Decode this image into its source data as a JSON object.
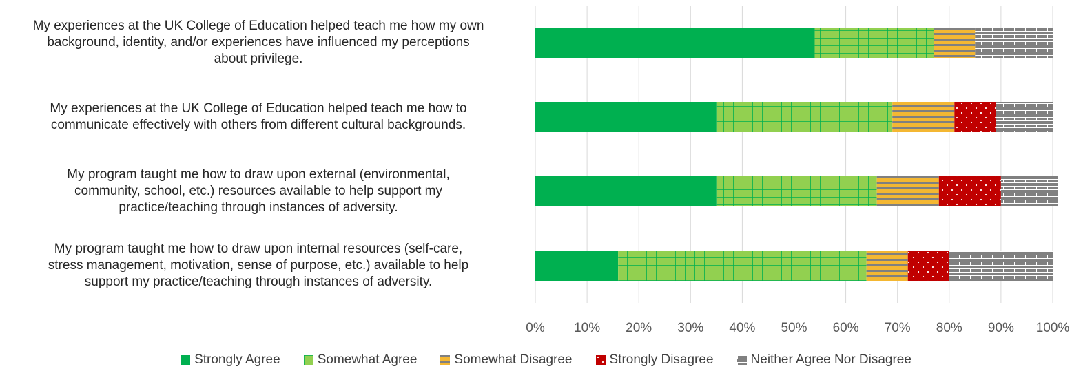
{
  "chart_data": {
    "type": "bar",
    "orientation": "horizontal",
    "stacked": true,
    "percent": true,
    "categories": [
      "My experiences at the UK College of Education helped teach me how my own background, identity, and/or experiences have influenced my perceptions about privilege.",
      "My experiences at the UK College of Education helped teach me how to communicate effectively with others from different cultural backgrounds.",
      "My program taught me how to draw upon external (environmental, community, school, etc.) resources available to help support my practice/teaching through instances of adversity.",
      "My program taught me how to draw upon internal resources (self-care, stress management, motivation, sense of purpose, etc.) available to help support my practice/teaching through instances of adversity."
    ],
    "category_lines": [
      [
        "My experiences at the UK College of Education helped teach me how my own",
        "background, identity, and/or experiences have influenced my perceptions",
        "about privilege."
      ],
      [
        "My experiences at the UK College of Education helped teach me how to",
        "communicate effectively with others from different cultural backgrounds."
      ],
      [
        "My program taught me how to draw upon external (environmental,",
        "community, school, etc.) resources available to help support my",
        "practice/teaching through instances of adversity."
      ],
      [
        "My program taught me how to draw upon internal resources (self-care,",
        "stress management, motivation, sense of purpose, etc.) available to help",
        "support my practice/teaching through instances of adversity."
      ]
    ],
    "series": [
      {
        "name": "Strongly Agree",
        "color": "#00b050",
        "pattern": "solid",
        "values": [
          54,
          35,
          35,
          16
        ]
      },
      {
        "name": "Somewhat Agree",
        "color": "#92d050",
        "pattern": "grid",
        "values": [
          23,
          34,
          31,
          48
        ]
      },
      {
        "name": "Somewhat Disagree",
        "color": "#f4b732",
        "pattern": "horizontal-stripes",
        "values": [
          8,
          12,
          12,
          8
        ]
      },
      {
        "name": "Strongly Disagree",
        "color": "#c00000",
        "pattern": "dots",
        "values": [
          0,
          8,
          12,
          8
        ]
      },
      {
        "name": "Neither Agree Nor Disagree",
        "color": "#808080",
        "pattern": "brick",
        "values": [
          15,
          11,
          11,
          20
        ]
      }
    ],
    "xlim": [
      0,
      100
    ],
    "xticks": [
      "0%",
      "10%",
      "20%",
      "30%",
      "40%",
      "50%",
      "60%",
      "70%",
      "80%",
      "90%",
      "100%"
    ],
    "grid": true,
    "legend_position": "bottom",
    "title": "",
    "xlabel": "",
    "ylabel": ""
  }
}
